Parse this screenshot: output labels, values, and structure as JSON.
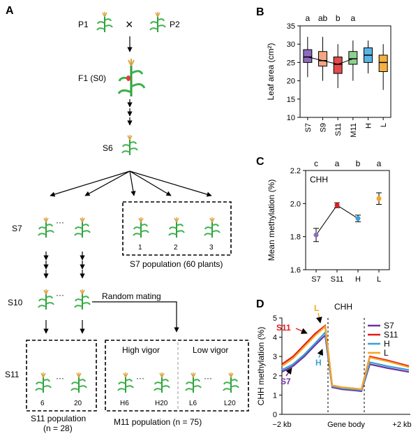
{
  "panelA": {
    "letter": "A",
    "p1": "P1",
    "p2": "P2",
    "cross": "×",
    "f1": "F1 (S0)",
    "s6": "S6",
    "s7": "S7",
    "s10": "S10",
    "s11": "S11",
    "dots": "···",
    "s7_pop_numbers": [
      "1",
      "2",
      "3"
    ],
    "s7_pop_caption": "S7 population (60 plants)",
    "random_mating": "Random mating",
    "s11_numbers": [
      "6",
      "20"
    ],
    "s11_caption_1": "S11 population",
    "s11_caption_2": "(n = 28)",
    "high_vigor": "High vigor",
    "low_vigor": "Low vigor",
    "m11_numbers": [
      "H6",
      "H20",
      "L6",
      "L20"
    ],
    "m11_caption": "M11 population (n = 75)"
  },
  "chart_data": [
    {
      "panel": "B",
      "type": "box",
      "ylabel": "Leaf area (cm²)",
      "ylim": [
        10,
        35
      ],
      "yticks": [
        "10",
        "15",
        "20",
        "25",
        "30",
        "35"
      ],
      "categories": [
        "S7",
        "S9",
        "S11",
        "M11",
        "H",
        "L"
      ],
      "significance": [
        "a",
        "ab",
        "b",
        "a",
        "",
        ""
      ],
      "colors": [
        "#8e6bbf",
        "#f4a582",
        "#e34a4a",
        "#8fcf8f",
        "#5ab4e5",
        "#f5b041"
      ],
      "boxes": [
        {
          "min": 21,
          "q1": 25,
          "median": 26.5,
          "q3": 28.5,
          "max": 32
        },
        {
          "min": 20,
          "q1": 24,
          "median": 25.5,
          "q3": 28,
          "max": 32
        },
        {
          "min": 18,
          "q1": 22,
          "median": 24.5,
          "q3": 26.5,
          "max": 30
        },
        {
          "min": 20,
          "q1": 24.5,
          "median": 26,
          "q3": 28,
          "max": 31
        },
        {
          "min": 22,
          "q1": 25,
          "median": 27,
          "q3": 29,
          "max": 31
        },
        {
          "min": 17.5,
          "q1": 22.5,
          "median": 25,
          "q3": 27,
          "max": 30
        }
      ],
      "trend_line": [
        26.5,
        25.5,
        24.5,
        26
      ]
    },
    {
      "panel": "C",
      "type": "scatter",
      "title": "CHH",
      "ylabel": "Mean methylation (%)",
      "ylim": [
        1.6,
        2.2
      ],
      "yticks": [
        "1.6",
        "1.8",
        "2.0",
        "2.2"
      ],
      "categories": [
        "S7",
        "S11",
        "H",
        "L"
      ],
      "significance": [
        "c",
        "a",
        "b",
        "a"
      ],
      "values": [
        1.81,
        1.99,
        1.91,
        2.03
      ],
      "errors": [
        0.04,
        0.015,
        0.02,
        0.035
      ],
      "colors": [
        "#8e6bbf",
        "#e41a1c",
        "#3aa0d6",
        "#f5a623"
      ],
      "trend_line": [
        1.81,
        1.99,
        1.91
      ]
    },
    {
      "panel": "D",
      "type": "line",
      "title": "CHH",
      "ylabel": "CHH methylation (%)",
      "ylim": [
        0,
        5
      ],
      "yticks": [
        "0",
        "1",
        "2",
        "3",
        "4",
        "5"
      ],
      "xticks": [
        "−2 kb",
        "Gene body",
        "+2 kb"
      ],
      "series": [
        {
          "name": "S7",
          "color": "#7030a0",
          "values": [
            2.2,
            2.5,
            3.0,
            3.6,
            4.1,
            1.4,
            1.3,
            1.25,
            1.2,
            2.6,
            2.4,
            2.2
          ]
        },
        {
          "name": "S11",
          "color": "#e41a1c",
          "values": [
            2.6,
            3.0,
            3.6,
            4.2,
            4.6,
            1.5,
            1.4,
            1.35,
            1.3,
            3.0,
            2.8,
            2.5
          ]
        },
        {
          "name": "H",
          "color": "#3aa0d6",
          "values": [
            2.3,
            2.6,
            3.1,
            3.7,
            4.25,
            1.45,
            1.35,
            1.3,
            1.25,
            2.7,
            2.5,
            2.3
          ]
        },
        {
          "name": "L",
          "color": "#f5a623",
          "values": [
            2.5,
            2.9,
            3.5,
            4.1,
            4.55,
            1.5,
            1.4,
            1.35,
            1.3,
            2.95,
            2.75,
            2.45
          ]
        }
      ],
      "annotations": [
        "L",
        "S11",
        "H",
        "S7"
      ]
    }
  ]
}
